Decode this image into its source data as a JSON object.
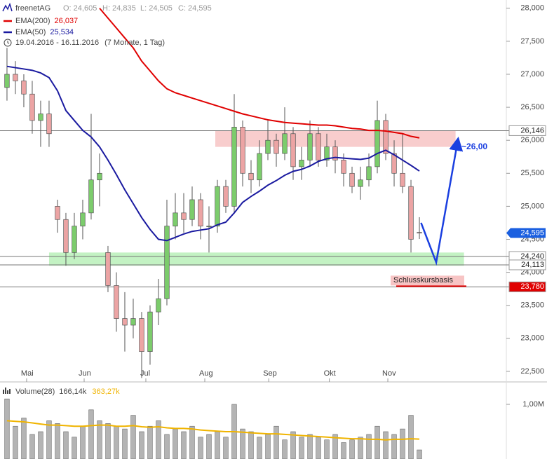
{
  "chart_data": [
    {
      "type": "candlestick",
      "symbol": "freenetAG",
      "quote": [
        "O: 24,605",
        "H: 24,835",
        "L: 24,505",
        "C: 24,595"
      ],
      "range_text": "19.04.2016 - 16.11.2016",
      "range_note": "(7 Monate, 1 Tag)",
      "up_color": "#7ccc6c",
      "down_color": "#eca4a4",
      "ohlc": [
        [
          26800,
          27400,
          26600,
          27000
        ],
        [
          27000,
          27200,
          26700,
          26900
        ],
        [
          26900,
          27000,
          26500,
          26700
        ],
        [
          26700,
          26900,
          26100,
          26300
        ],
        [
          26300,
          26600,
          25900,
          26400
        ],
        [
          26400,
          26600,
          25900,
          26100
        ],
        [
          25000,
          25100,
          24600,
          24800
        ],
        [
          24800,
          24900,
          24100,
          24300
        ],
        [
          24300,
          24900,
          24200,
          24700
        ],
        [
          24700,
          25100,
          24500,
          24900
        ],
        [
          24900,
          26400,
          24800,
          25400
        ],
        [
          25400,
          25800,
          25000,
          25500
        ],
        [
          24300,
          24400,
          23700,
          23800
        ],
        [
          23800,
          24000,
          23100,
          23300
        ],
        [
          23300,
          23700,
          22800,
          23200
        ],
        [
          23200,
          23600,
          23000,
          23300
        ],
        [
          23300,
          23400,
          22400,
          22800
        ],
        [
          22800,
          23500,
          22600,
          23400
        ],
        [
          23400,
          23900,
          23200,
          23600
        ],
        [
          23600,
          25100,
          23500,
          24700
        ],
        [
          24700,
          25200,
          24500,
          24900
        ],
        [
          24900,
          25200,
          24600,
          24800
        ],
        [
          24800,
          25300,
          24700,
          25100
        ],
        [
          25100,
          25200,
          24500,
          24700
        ],
        [
          24700,
          25000,
          24300,
          24700
        ],
        [
          24700,
          25400,
          24600,
          25300
        ],
        [
          25300,
          25400,
          24900,
          25000
        ],
        [
          25000,
          26700,
          24900,
          26200
        ],
        [
          26200,
          26300,
          25300,
          25500
        ],
        [
          25500,
          25700,
          25200,
          25400
        ],
        [
          25400,
          26000,
          25300,
          25800
        ],
        [
          25800,
          26300,
          25700,
          26000
        ],
        [
          26000,
          26100,
          25600,
          25800
        ],
        [
          25800,
          26500,
          25700,
          26100
        ],
        [
          26100,
          26200,
          25400,
          25600
        ],
        [
          25600,
          25900,
          25400,
          25700
        ],
        [
          25700,
          26300,
          25600,
          26100
        ],
        [
          26100,
          26200,
          25600,
          25700
        ],
        [
          25700,
          26100,
          25600,
          25900
        ],
        [
          25900,
          26000,
          25500,
          25700
        ],
        [
          25700,
          25800,
          25300,
          25500
        ],
        [
          25500,
          25600,
          25200,
          25300
        ],
        [
          25300,
          25600,
          25100,
          25400
        ],
        [
          25400,
          25800,
          25300,
          25600
        ],
        [
          25600,
          26600,
          25500,
          26300
        ],
        [
          26300,
          26400,
          25700,
          25800
        ],
        [
          25800,
          26000,
          25300,
          25500
        ],
        [
          25500,
          26100,
          25200,
          25300
        ],
        [
          25300,
          25400,
          24300,
          24500
        ],
        [
          24605,
          24835,
          24505,
          24595
        ]
      ],
      "lines": [
        {
          "name": "EMA(200)",
          "value_label": "26,037",
          "color": "#e00000",
          "values": [
            null,
            null,
            null,
            null,
            null,
            null,
            null,
            null,
            null,
            null,
            null,
            28000,
            27850,
            27700,
            27550,
            27400,
            27200,
            27050,
            26900,
            26780,
            26720,
            26680,
            26640,
            26600,
            26560,
            26520,
            26480,
            26440,
            26400,
            26370,
            26340,
            26310,
            26290,
            26270,
            26260,
            26250,
            26240,
            26230,
            26230,
            26220,
            26200,
            26180,
            26170,
            26150,
            26150,
            26140,
            26120,
            26100,
            26060,
            26037
          ]
        },
        {
          "name": "EMA(50)",
          "value_label": "25,534",
          "color": "#1a1aa0",
          "values": [
            27120,
            27100,
            27080,
            27060,
            27020,
            26950,
            26750,
            26450,
            26300,
            26150,
            26050,
            25900,
            25700,
            25480,
            25250,
            25040,
            24830,
            24650,
            24500,
            24480,
            24530,
            24580,
            24620,
            24640,
            24660,
            24720,
            24760,
            24900,
            25060,
            25150,
            25230,
            25320,
            25390,
            25470,
            25530,
            25560,
            25610,
            25680,
            25720,
            25740,
            25730,
            25720,
            25710,
            25730,
            25800,
            25850,
            25780,
            25700,
            25620,
            25534
          ]
        }
      ],
      "ylim": [
        22340,
        28125
      ],
      "yticks": [
        {
          "value": 22500,
          "label": "22,500"
        },
        {
          "value": 23000,
          "label": "23,000"
        },
        {
          "value": 23500,
          "label": "23,500"
        },
        {
          "value": 24000,
          "label": "24,000"
        },
        {
          "value": 24500,
          "label": "24,500"
        },
        {
          "value": 25000,
          "label": "25,000"
        },
        {
          "value": 25500,
          "label": "25,500"
        },
        {
          "value": 26000,
          "label": "26,000"
        },
        {
          "value": 26500,
          "label": "26,500"
        },
        {
          "value": 27000,
          "label": "27,000"
        },
        {
          "value": 27500,
          "label": "27,500"
        },
        {
          "value": 28000,
          "label": "28,000"
        }
      ],
      "xlim": [
        -0.83,
        59.33
      ],
      "xticks": [
        {
          "value": 2.33,
          "label": "Mai"
        },
        {
          "value": 9.17,
          "label": "Jun"
        },
        {
          "value": 16.5,
          "label": "Jul"
        },
        {
          "value": 23.5,
          "label": "Aug"
        },
        {
          "value": 31.1,
          "label": "Sep"
        },
        {
          "value": 38.3,
          "label": "Okt"
        },
        {
          "value": 45.25,
          "label": "Nov"
        }
      ],
      "zones": [
        {
          "from": 25900,
          "to": 26146,
          "x": [
            24.75,
            53.3
          ],
          "color": "#f7c4c4"
        },
        {
          "from": 24100,
          "to": 24300,
          "x": [
            5,
            54.3
          ],
          "color": "#b8f0b8"
        }
      ],
      "levels": [
        {
          "value": 26146,
          "label": "26,146",
          "color": "#ffffff",
          "text_color": "#222222"
        },
        {
          "value": 24240,
          "label": "24,240",
          "color": "#ffffff",
          "text_color": "#222222"
        },
        {
          "value": 24113,
          "label": "24,113",
          "color": "#ffffff",
          "text_color": "#222222"
        },
        {
          "value": 23780,
          "label": "23,780",
          "color": "#e00000",
          "text_color": "#ffffff",
          "note": "Schlusskursbasis"
        }
      ],
      "last": {
        "value": 24595,
        "label": "24,595",
        "color": "#1a5fe0"
      },
      "projection": {
        "x": [
          49.2,
          51,
          53.5
        ],
        "y": [
          24750,
          24150,
          25950
        ],
        "label": "~26,00",
        "color": "#1a3fe0"
      }
    },
    {
      "type": "bar",
      "name": "Volume(28)",
      "value_label": "166,14k",
      "color": "#b4b4b4",
      "values": [
        1100000,
        600000,
        750000,
        450000,
        500000,
        700000,
        650000,
        500000,
        400000,
        600000,
        900000,
        700000,
        650000,
        600000,
        550000,
        800000,
        500000,
        600000,
        700000,
        450000,
        550000,
        500000,
        600000,
        400000,
        450000,
        500000,
        400000,
        1000000,
        550000,
        500000,
        400000,
        450000,
        600000,
        350000,
        500000,
        400000,
        450000,
        400000,
        350000,
        450000,
        300000,
        350000,
        400000,
        450000,
        600000,
        500000,
        450000,
        550000,
        800000,
        166140
      ],
      "average": {
        "value_label": "363,27k",
        "color": "#f0b400",
        "values": [
          700000,
          690000,
          680000,
          660000,
          640000,
          620000,
          620000,
          610000,
          600000,
          600000,
          610000,
          620000,
          620000,
          600000,
          600000,
          610000,
          590000,
          580000,
          590000,
          570000,
          560000,
          560000,
          550000,
          530000,
          520000,
          510000,
          500000,
          500000,
          490000,
          480000,
          470000,
          460000,
          460000,
          450000,
          440000,
          430000,
          420000,
          410000,
          400000,
          390000,
          380000,
          370000,
          370000,
          360000,
          360000,
          350000,
          360000,
          360000,
          370000,
          363270
        ]
      },
      "ylim": [
        0,
        1385000
      ],
      "yticks": [
        {
          "value": 1000000,
          "label": "1,00M"
        }
      ]
    }
  ]
}
